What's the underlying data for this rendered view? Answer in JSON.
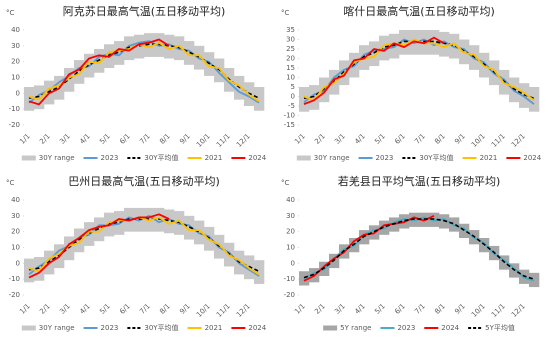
{
  "chart_data": [
    {
      "type": "line",
      "title": "阿克苏日最高气温(五日移动平均)",
      "unit": "°C",
      "categories": [
        "1/1",
        null,
        "2/1",
        null,
        "3/1",
        null,
        "4/1",
        null,
        "5/1",
        null,
        "6/1",
        null,
        "7/1",
        null,
        "8/1",
        null,
        "9/1",
        null,
        "10/1",
        null,
        "11/1",
        null,
        "12/1",
        null
      ],
      "ylim": [
        -20,
        40
      ],
      "yticks": [
        -20,
        -10,
        0,
        10,
        20,
        30,
        40
      ],
      "series": [
        {
          "name": "30Y range",
          "color": "#c8c8c8",
          "low": [
            -11,
            -10,
            -7,
            -4,
            1,
            6,
            10,
            13,
            16,
            18,
            21,
            22,
            23,
            23,
            22,
            21,
            18,
            15,
            11,
            7,
            1,
            -4,
            -8,
            -11
          ],
          "high": [
            4,
            5,
            8,
            11,
            16,
            21,
            25,
            28,
            31,
            33,
            36,
            37,
            38,
            38,
            37,
            36,
            33,
            30,
            26,
            22,
            16,
            11,
            7,
            4
          ]
        },
        {
          "name": "2023",
          "color": "#5b9bd5",
          "values": [
            -6,
            -1,
            2,
            7,
            11,
            16,
            17,
            23,
            25,
            24,
            30,
            32,
            33,
            30,
            31,
            28,
            27,
            22,
            20,
            13,
            7,
            1,
            -2,
            -6
          ]
        },
        {
          "name": "30Y平均值",
          "color": "#000000",
          "dash": true,
          "values": [
            -3,
            -2,
            1,
            4,
            9,
            14,
            18,
            21,
            24,
            26,
            29,
            30,
            31,
            31,
            30,
            29,
            26,
            23,
            19,
            15,
            9,
            4,
            0,
            -3
          ]
        },
        {
          "name": "2021",
          "color": "#ffc000",
          "values": [
            -2,
            -4,
            3,
            5,
            10,
            12,
            20,
            19,
            26,
            27,
            28,
            31,
            29,
            32,
            28,
            30,
            24,
            24,
            17,
            16,
            8,
            5,
            -1,
            -5
          ]
        },
        {
          "name": "2024",
          "color": "#ff0000",
          "values": [
            -5,
            -7,
            0,
            3,
            12,
            15,
            22,
            24,
            23,
            28,
            27,
            31,
            32,
            34,
            30,
            null,
            null,
            null,
            null,
            null,
            null,
            null,
            null,
            null
          ]
        }
      ]
    },
    {
      "type": "line",
      "title": "喀什日最高气温(五日移动平均)",
      "unit": "°C",
      "categories": [
        "1/1",
        null,
        "2/1",
        null,
        "3/1",
        null,
        "4/1",
        null,
        "5/1",
        null,
        "6/1",
        null,
        "7/1",
        null,
        "8/1",
        null,
        "9/1",
        null,
        "10/1",
        null,
        "11/1",
        null,
        "12/1",
        null
      ],
      "ylim": [
        -15,
        35
      ],
      "yticks": [
        -15,
        -10,
        -5,
        0,
        5,
        10,
        15,
        20,
        25,
        30,
        35
      ],
      "series": [
        {
          "name": "30Y range",
          "color": "#c8c8c8",
          "low": [
            -8,
            -7,
            -3,
            1,
            6,
            10,
            14,
            16,
            19,
            20,
            22,
            22,
            22,
            22,
            21,
            20,
            17,
            14,
            10,
            6,
            1,
            -3,
            -6,
            -8
          ],
          "high": [
            5,
            6,
            10,
            14,
            19,
            23,
            27,
            29,
            32,
            33,
            35,
            35,
            35,
            35,
            34,
            33,
            30,
            27,
            23,
            19,
            14,
            10,
            7,
            5
          ]
        },
        {
          "name": "2023",
          "color": "#5b9bd5",
          "values": [
            -3,
            1,
            3,
            10,
            14,
            16,
            22,
            24,
            25,
            26,
            30,
            28,
            30,
            27,
            29,
            26,
            25,
            20,
            18,
            12,
            9,
            3,
            0,
            -4
          ]
        },
        {
          "name": "30Y平均值",
          "color": "#000000",
          "dash": true,
          "values": [
            -1,
            0,
            4,
            8,
            13,
            17,
            21,
            23,
            26,
            27,
            29,
            29,
            29,
            29,
            28,
            27,
            24,
            21,
            17,
            13,
            8,
            4,
            1,
            -1
          ]
        },
        {
          "name": "2021",
          "color": "#ffc000",
          "values": [
            0,
            -2,
            5,
            7,
            12,
            18,
            20,
            21,
            27,
            28,
            27,
            30,
            28,
            28,
            26,
            28,
            23,
            22,
            16,
            14,
            7,
            5,
            2,
            -2
          ]
        },
        {
          "name": "2024",
          "color": "#ff0000",
          "values": [
            -4,
            -2,
            2,
            9,
            11,
            19,
            20,
            25,
            24,
            28,
            26,
            29,
            28,
            31,
            28,
            null,
            null,
            null,
            null,
            null,
            null,
            null,
            null,
            null
          ]
        }
      ]
    },
    {
      "type": "line",
      "title": "巴州日最高气温(五日移动平均)",
      "unit": "°C",
      "categories": [
        "1/1",
        null,
        "2/1",
        null,
        "3/1",
        null,
        "4/1",
        null,
        "5/1",
        null,
        "6/1",
        null,
        "7/1",
        null,
        "8/1",
        null,
        "9/1",
        null,
        "10/1",
        null,
        "11/1",
        null,
        "12/1",
        null
      ],
      "ylim": [
        -20,
        40
      ],
      "yticks": [
        -20,
        -10,
        0,
        10,
        20,
        30,
        40
      ],
      "series": [
        {
          "name": "30Y range",
          "color": "#c8c8c8",
          "low": [
            -12,
            -11,
            -7,
            -3,
            2,
            7,
            11,
            14,
            17,
            18,
            20,
            20,
            20,
            20,
            19,
            18,
            15,
            12,
            8,
            3,
            -2,
            -7,
            -10,
            -13
          ],
          "high": [
            3,
            4,
            8,
            12,
            17,
            22,
            26,
            29,
            32,
            33,
            35,
            35,
            35,
            35,
            34,
            33,
            30,
            27,
            23,
            18,
            13,
            8,
            5,
            2
          ]
        },
        {
          "name": "2023",
          "color": "#5b9bd5",
          "values": [
            -7,
            -2,
            2,
            8,
            11,
            16,
            18,
            24,
            24,
            25,
            29,
            27,
            30,
            26,
            28,
            25,
            24,
            19,
            17,
            10,
            7,
            0,
            -4,
            -8
          ]
        },
        {
          "name": "30Y平均值",
          "color": "#000000",
          "dash": true,
          "values": [
            -4,
            -3,
            1,
            5,
            10,
            15,
            19,
            22,
            25,
            26,
            28,
            28,
            28,
            28,
            27,
            26,
            23,
            20,
            16,
            11,
            6,
            1,
            -2,
            -5
          ]
        },
        {
          "name": "2021",
          "color": "#ffc000",
          "values": [
            -3,
            -5,
            3,
            6,
            11,
            13,
            20,
            20,
            26,
            27,
            27,
            29,
            27,
            29,
            25,
            27,
            21,
            21,
            15,
            12,
            5,
            2,
            -3,
            -7
          ]
        },
        {
          "name": "2024",
          "color": "#ff0000",
          "values": [
            -9,
            -6,
            0,
            4,
            12,
            16,
            21,
            23,
            24,
            28,
            27,
            29,
            29,
            31,
            28,
            null,
            null,
            null,
            null,
            null,
            null,
            null,
            null,
            null
          ]
        }
      ]
    },
    {
      "type": "line",
      "title": "若羌县日平均气温(五日移动平均)",
      "unit": "°C",
      "categories": [
        "1/1",
        null,
        "2/1",
        null,
        "3/1",
        null,
        "4/1",
        null,
        "5/1",
        null,
        "6/1",
        null,
        "7/1",
        null,
        "8/1",
        null,
        "9/1",
        null,
        "10/1",
        null,
        "11/1",
        null,
        "12/1",
        null
      ],
      "ylim": [
        -20,
        40
      ],
      "yticks": [
        -20,
        -10,
        0,
        10,
        20,
        30,
        40
      ],
      "series": [
        {
          "name": "5Y range",
          "color": "#a6a6a6",
          "low": [
            -14,
            -12,
            -8,
            -3,
            3,
            7,
            12,
            15,
            18,
            20,
            22,
            23,
            23,
            23,
            22,
            20,
            16,
            12,
            7,
            2,
            -4,
            -9,
            -13,
            -15
          ],
          "high": [
            -5,
            -3,
            1,
            6,
            12,
            16,
            21,
            24,
            27,
            29,
            31,
            32,
            32,
            32,
            31,
            29,
            25,
            21,
            16,
            11,
            5,
            0,
            -4,
            -6
          ]
        },
        {
          "name": "2023",
          "color": "#4bacc6",
          "values": [
            -10,
            -6,
            -4,
            3,
            9,
            11,
            18,
            21,
            22,
            26,
            28,
            27,
            29,
            27,
            28,
            24,
            22,
            16,
            13,
            6,
            2,
            -3,
            -9,
            -11
          ]
        },
        {
          "name": "2024",
          "color": "#ff0000",
          "values": [
            -11,
            -8,
            -2,
            3,
            7,
            14,
            18,
            19,
            24,
            25,
            26,
            29,
            27,
            30,
            null,
            null,
            null,
            null,
            null,
            null,
            null,
            null,
            null,
            null
          ]
        },
        {
          "name": "5Y平均值",
          "color": "#000000",
          "dash": true,
          "values": [
            -9,
            -7,
            -3,
            2,
            8,
            12,
            17,
            20,
            23,
            25,
            27,
            28,
            28,
            28,
            27,
            25,
            21,
            17,
            12,
            7,
            1,
            -4,
            -8,
            -10
          ]
        }
      ]
    }
  ]
}
